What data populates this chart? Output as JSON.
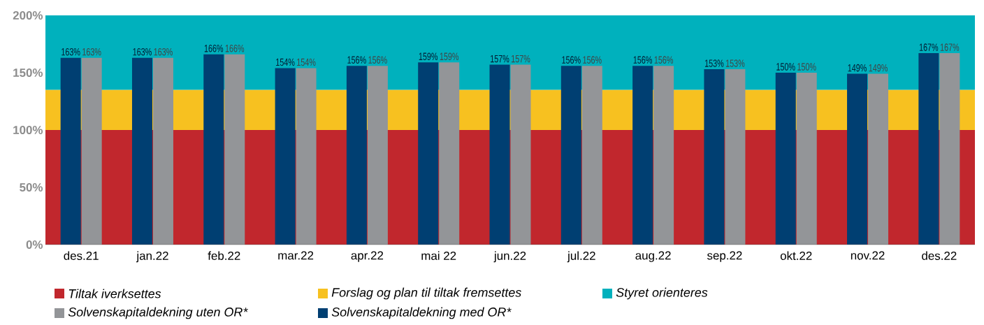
{
  "chart_data": {
    "type": "bar",
    "categories": [
      "des.21",
      "jan.22",
      "feb.22",
      "mar.22",
      "apr.22",
      "mai 22",
      "jun.22",
      "jul.22",
      "aug.22",
      "sep.22",
      "okt.22",
      "nov.22",
      "des.22"
    ],
    "series": [
      {
        "name": "Solvenskapitaldekning med OR*",
        "color": "#003f72",
        "values": [
          163,
          163,
          166,
          154,
          156,
          159,
          157,
          156,
          156,
          153,
          150,
          149,
          167
        ],
        "value_labels": [
          "163%",
          "163%",
          "166%",
          "154%",
          "156%",
          "159%",
          "157%",
          "156%",
          "156%",
          "153%",
          "150%",
          "149%",
          "167%"
        ]
      },
      {
        "name": "Solvenskapitaldekning uten OR*",
        "color": "#939598",
        "values": [
          163,
          163,
          166,
          154,
          156,
          159,
          157,
          156,
          156,
          153,
          150,
          149,
          167
        ],
        "value_labels": [
          "163%",
          "163%",
          "166%",
          "154%",
          "156%",
          "159%",
          "157%",
          "156%",
          "156%",
          "153%",
          "150%",
          "149%",
          "167%"
        ]
      }
    ],
    "ylim": [
      0,
      200
    ],
    "yticks": [
      {
        "value": 0,
        "label": "0%"
      },
      {
        "value": 50,
        "label": "50%"
      },
      {
        "value": 100,
        "label": "100%"
      },
      {
        "value": 150,
        "label": "150%"
      },
      {
        "value": 200,
        "label": "200%"
      }
    ],
    "bands": [
      {
        "axis": "y",
        "from": 0,
        "to": 100,
        "label": "Tiltak iverksettes",
        "color": "#c1272d"
      },
      {
        "axis": "y",
        "from": 100,
        "to": 135,
        "label": "Forslag og plan til tiltak fremsettes",
        "color": "#f7c120"
      },
      {
        "axis": "y",
        "from": 135,
        "to": 200,
        "label": "Styret orienteres",
        "color": "#00b1bd"
      }
    ],
    "legend": "bottom"
  }
}
